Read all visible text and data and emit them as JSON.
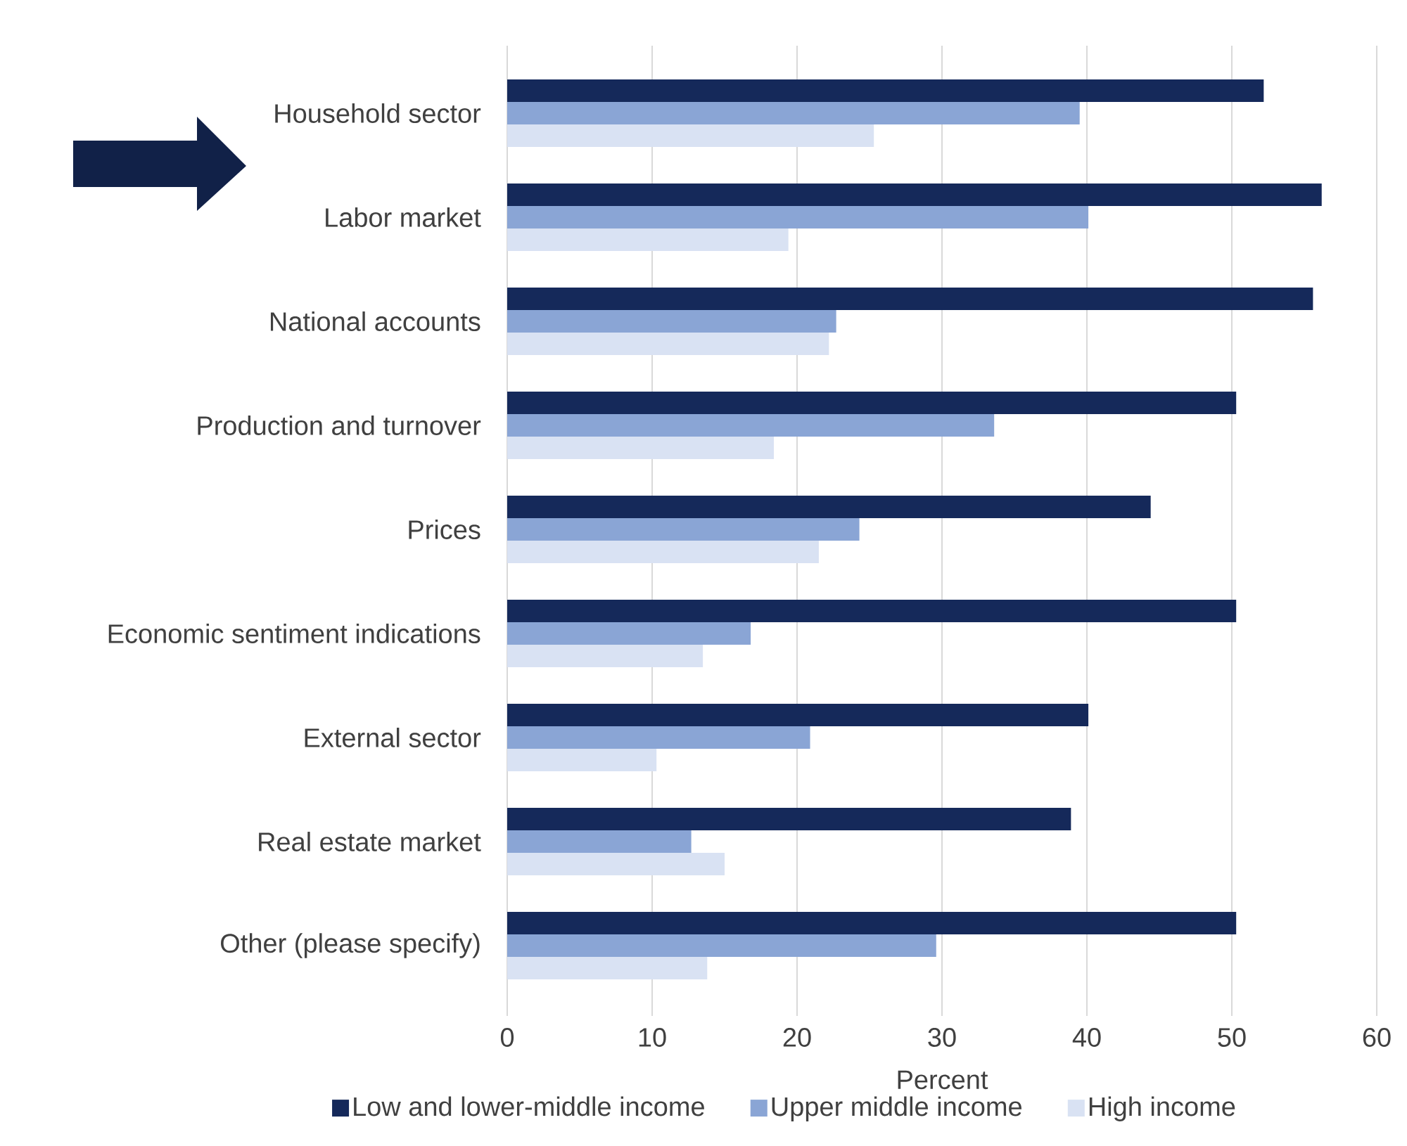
{
  "chart_data": {
    "type": "bar",
    "orientation": "horizontal",
    "categories": [
      "Household sector",
      "Labor market",
      "National accounts",
      "Production and turnover",
      "Prices",
      "Economic sentiment indications",
      "External sector",
      "Real estate market",
      "Other (please specify)"
    ],
    "series": [
      {
        "name": "Low and lower-middle income",
        "color": "#15295a",
        "values": [
          52.2,
          56.2,
          55.6,
          50.3,
          44.4,
          50.3,
          40.1,
          38.9,
          50.3
        ]
      },
      {
        "name": "Upper middle income",
        "color": "#8aa5d5",
        "values": [
          39.5,
          40.1,
          22.7,
          33.6,
          24.3,
          16.8,
          20.9,
          12.7,
          29.6
        ]
      },
      {
        "name": "High income",
        "color": "#d9e2f3",
        "values": [
          25.3,
          19.4,
          22.2,
          18.4,
          21.5,
          13.5,
          10.3,
          15.0,
          13.8
        ]
      }
    ],
    "xlabel": "Percent",
    "xlim": [
      0,
      60
    ],
    "xticks": [
      0,
      10,
      20,
      30,
      40,
      50,
      60
    ],
    "grid": "x",
    "legend": "bottom"
  }
}
